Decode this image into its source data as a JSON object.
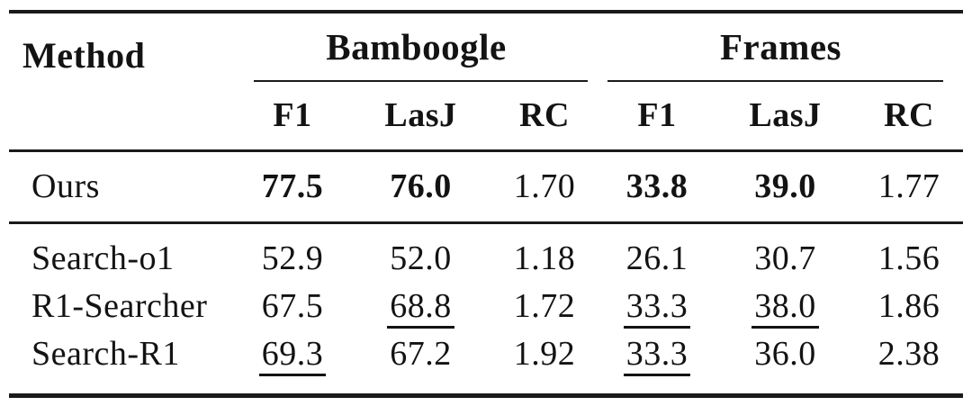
{
  "colors": {
    "background": "#ffffff",
    "text": "#131313",
    "rule": "#1a1a1a"
  },
  "table": {
    "method_header": "Method",
    "groups": [
      {
        "label": "Bamboogle",
        "subcolumns": [
          "F1",
          "LasJ",
          "RC"
        ]
      },
      {
        "label": "Frames",
        "subcolumns": [
          "F1",
          "LasJ",
          "RC"
        ]
      }
    ],
    "rows": [
      {
        "method": "Ours",
        "cells": [
          {
            "text": "77.5",
            "style": "bold"
          },
          {
            "text": "76.0",
            "style": "bold"
          },
          {
            "text": "1.70",
            "style": ""
          },
          {
            "text": "33.8",
            "style": "bold"
          },
          {
            "text": "39.0",
            "style": "bold"
          },
          {
            "text": "1.77",
            "style": ""
          }
        ]
      },
      {
        "method": "Search-o1",
        "cells": [
          {
            "text": "52.9",
            "style": ""
          },
          {
            "text": "52.0",
            "style": ""
          },
          {
            "text": "1.18",
            "style": ""
          },
          {
            "text": "26.1",
            "style": ""
          },
          {
            "text": "30.7",
            "style": ""
          },
          {
            "text": "1.56",
            "style": ""
          }
        ]
      },
      {
        "method": "R1-Searcher",
        "cells": [
          {
            "text": "67.5",
            "style": ""
          },
          {
            "text": "68.8",
            "style": "underline"
          },
          {
            "text": "1.72",
            "style": ""
          },
          {
            "text": "33.3",
            "style": "underline"
          },
          {
            "text": "38.0",
            "style": "underline"
          },
          {
            "text": "1.86",
            "style": ""
          }
        ]
      },
      {
        "method": "Search-R1",
        "cells": [
          {
            "text": "69.3",
            "style": "underline"
          },
          {
            "text": "67.2",
            "style": ""
          },
          {
            "text": "1.92",
            "style": ""
          },
          {
            "text": "33.3",
            "style": "underline"
          },
          {
            "text": "36.0",
            "style": ""
          },
          {
            "text": "2.38",
            "style": ""
          }
        ]
      }
    ]
  },
  "chart_data": {
    "type": "table",
    "columns": [
      "Method",
      "Bamboogle F1",
      "Bamboogle LasJ",
      "Bamboogle RC",
      "Frames F1",
      "Frames LasJ",
      "Frames RC"
    ],
    "rows": [
      [
        "Ours",
        77.5,
        76.0,
        1.7,
        33.8,
        39.0,
        1.77
      ],
      [
        "Search-o1",
        52.9,
        52.0,
        1.18,
        26.1,
        30.7,
        1.56
      ],
      [
        "R1-Searcher",
        67.5,
        68.8,
        1.72,
        33.3,
        38.0,
        1.86
      ],
      [
        "Search-R1",
        69.3,
        67.2,
        1.92,
        33.3,
        36.0,
        2.38
      ]
    ],
    "bold_values": [
      "Ours Bamboogle F1 77.5",
      "Ours Bamboogle LasJ 76.0",
      "Ours Frames F1 33.8",
      "Ours Frames LasJ 39.0"
    ],
    "underlined_values": [
      "R1-Searcher Bamboogle LasJ 68.8",
      "R1-Searcher Frames F1 33.3",
      "R1-Searcher Frames LasJ 38.0",
      "Search-R1 Bamboogle F1 69.3",
      "Search-R1 Frames F1 33.3"
    ]
  }
}
